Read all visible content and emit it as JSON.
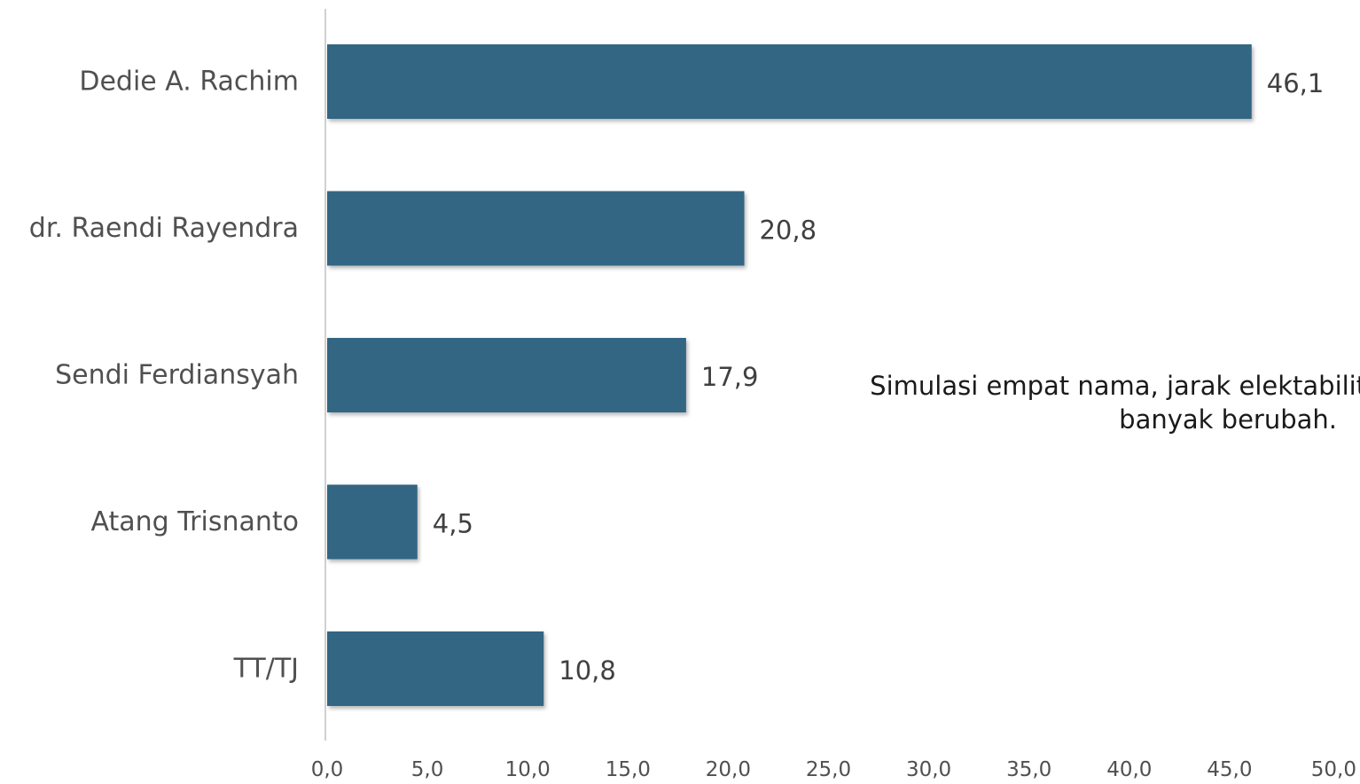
{
  "chart_data": {
    "type": "bar",
    "orientation": "horizontal",
    "categories": [
      "Dedie A. Rachim",
      "dr. Raendi Rayendra",
      "Sendi Ferdiansyah",
      "Atang Trisnanto",
      "TT/TJ"
    ],
    "values": [
      46.1,
      20.8,
      17.9,
      4.5,
      10.8
    ],
    "value_labels": [
      "46,1",
      "20,8",
      "17,9",
      "4,5",
      "10,8"
    ],
    "xlim": [
      0,
      50
    ],
    "x_ticks": [
      "0,0",
      "5,0",
      "10,0",
      "15,0",
      "20,0",
      "25,0",
      "30,0",
      "35,0",
      "40,0",
      "45,0",
      "50,0"
    ],
    "grid": false,
    "bar_color": "#336683",
    "annotation": {
      "line1": "Simulasi empat nama, jarak elektabilitas",
      "line2": "banyak berubah."
    }
  }
}
